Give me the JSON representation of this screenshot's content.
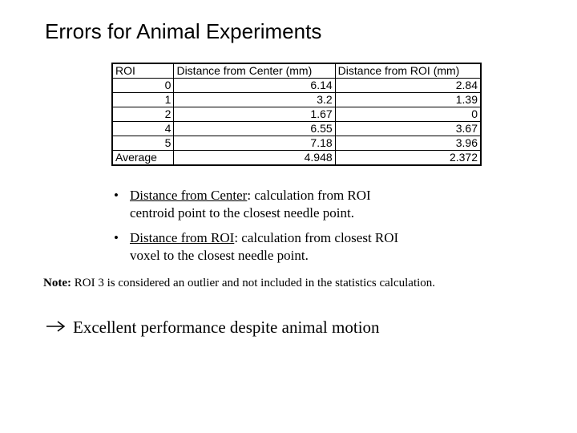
{
  "slide": {
    "title": "Errors for Animal Experiments"
  },
  "table": {
    "headers": [
      "ROI",
      "Distance from Center (mm)",
      "Distance from ROI (mm)"
    ],
    "rows": [
      {
        "roi": "0",
        "center": "6.14",
        "roi_dist": "2.84"
      },
      {
        "roi": "1",
        "center": "3.2",
        "roi_dist": "1.39"
      },
      {
        "roi": "2",
        "center": "1.67",
        "roi_dist": "0"
      },
      {
        "roi": "4",
        "center": "6.55",
        "roi_dist": "3.67"
      },
      {
        "roi": "5",
        "center": "7.18",
        "roi_dist": "3.96"
      }
    ],
    "average": {
      "label": "Average",
      "center": "4.948",
      "roi_dist": "2.372"
    }
  },
  "bullets": [
    {
      "term": "Distance from Center",
      "text": ": calculation from ROI",
      "text2": "centroid point to the closest needle point."
    },
    {
      "term": "Distance from ROI",
      "text": ": calculation from closest ROI",
      "text2": "voxel to the closest needle point."
    }
  ],
  "note": {
    "label": "Note:",
    "text": " ROI 3 is considered an outlier and not included in the statistics calculation."
  },
  "conclusion": {
    "icon": "right-arrow-icon",
    "text": "Excellent performance despite animal motion"
  }
}
